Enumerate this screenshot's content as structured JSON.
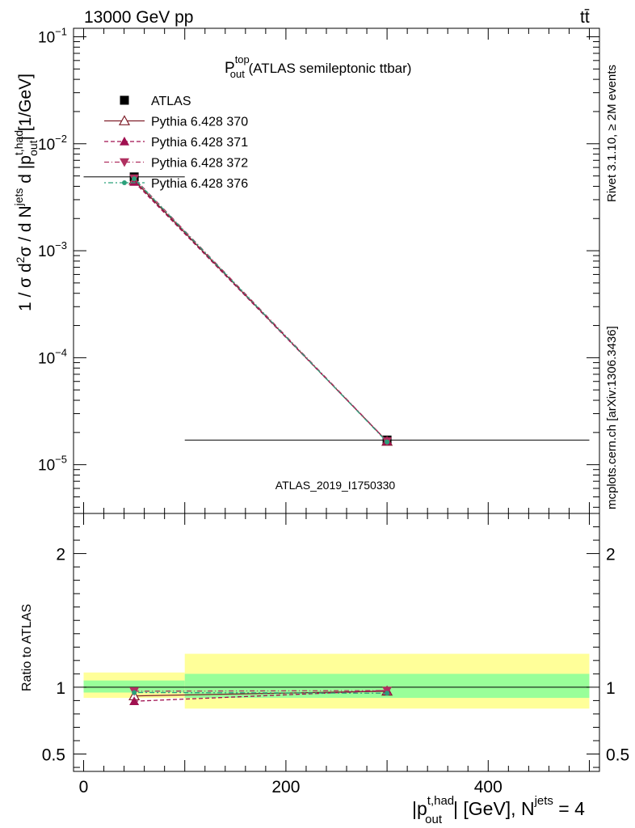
{
  "header": {
    "energy_label": "13000 GeV pp",
    "process_label": "tt̄"
  },
  "side_labels": {
    "rivet": "Rivet 3.1.10, ≥ 2M events",
    "mcplots": "mcplots.cern.ch [arXiv:1306.3436]"
  },
  "chart_data": [
    {
      "type": "line",
      "title": "P_out^top (ATLAS semileptonic ttbar)",
      "title_main": "P",
      "title_sup": "top",
      "title_sub": "out",
      "title_rest": " (ATLAS semileptonic ttbar)",
      "ylabel": "1 / σ d²σ / d N^jets d |p_out^t,had| [1/GeV]",
      "yscale": "log",
      "ylim": [
        3.5e-06,
        0.12
      ],
      "xlim": [
        -10,
        510
      ],
      "y_ticks": [
        {
          "value": 1e-05,
          "mant": "10",
          "exp": "−5"
        },
        {
          "value": 0.0001,
          "mant": "10",
          "exp": "−4"
        },
        {
          "value": 0.001,
          "mant": "10",
          "exp": "−3"
        },
        {
          "value": 0.01,
          "mant": "10",
          "exp": "−2"
        },
        {
          "value": 0.1,
          "mant": "10",
          "exp": "−1"
        }
      ],
      "analysis_label": "ATLAS_2019_I1750330",
      "legend_position": "top-left",
      "series": [
        {
          "name": "ATLAS",
          "style": "data",
          "color": "#000000",
          "x": [
            50,
            300
          ],
          "y": [
            0.0049,
            1.7e-05
          ],
          "xerr": [
            50,
            200
          ]
        },
        {
          "name": "Pythia 6.428 370",
          "style": "solid",
          "marker": "triangle-open",
          "color": "#7f1f2a",
          "x": [
            50,
            300
          ],
          "y": [
            0.00455,
            1.65e-05
          ]
        },
        {
          "name": "Pythia 6.428 371",
          "style": "dashed",
          "marker": "triangle-filled",
          "color": "#a01050",
          "x": [
            50,
            300
          ],
          "y": [
            0.0044,
            1.66e-05
          ]
        },
        {
          "name": "Pythia 6.428 372",
          "style": "dashdot",
          "marker": "triangle-down-filled",
          "color": "#b03060",
          "x": [
            50,
            300
          ],
          "y": [
            0.00475,
            1.66e-05
          ]
        },
        {
          "name": "Pythia 6.428 376",
          "style": "dashdotted",
          "marker": "circle-filled",
          "color": "#2aa07a",
          "x": [
            50,
            300
          ],
          "y": [
            0.0047,
            1.63e-05
          ]
        }
      ]
    },
    {
      "type": "line",
      "ylabel": "Ratio to ATLAS",
      "ylim": [
        0.37,
        2.3
      ],
      "xlim": [
        -10,
        510
      ],
      "y_ticks": [
        0.5,
        1,
        2
      ],
      "y_tick_labels": [
        "0.5",
        "1",
        "2"
      ],
      "x_ticks": [
        0,
        200,
        400
      ],
      "x_tick_labels": [
        "0",
        "200",
        "400"
      ],
      "xlabel_main": "|p",
      "xlabel_sup": "t,had",
      "xlabel_sub": "out",
      "xlabel_rest": "| [GeV], N",
      "xlabel_sup2": "jets",
      "xlabel_tail": " = 4",
      "bands": [
        {
          "x0": 0,
          "x1": 100,
          "yellow": [
            0.92,
            1.11
          ],
          "green": [
            0.96,
            1.05
          ]
        },
        {
          "x0": 100,
          "x1": 500,
          "yellow": [
            0.84,
            1.25
          ],
          "green": [
            0.92,
            1.1
          ]
        }
      ],
      "series": [
        {
          "name": "Pythia 6.428 370",
          "x": [
            50,
            300
          ],
          "y": [
            0.935,
            0.97
          ]
        },
        {
          "name": "Pythia 6.428 371",
          "x": [
            50,
            300
          ],
          "y": [
            0.895,
            0.975
          ]
        },
        {
          "name": "Pythia 6.428 372",
          "x": [
            50,
            300
          ],
          "y": [
            0.97,
            0.975
          ]
        },
        {
          "name": "Pythia 6.428 376",
          "x": [
            50,
            300
          ],
          "y": [
            0.96,
            0.955
          ]
        }
      ]
    }
  ]
}
